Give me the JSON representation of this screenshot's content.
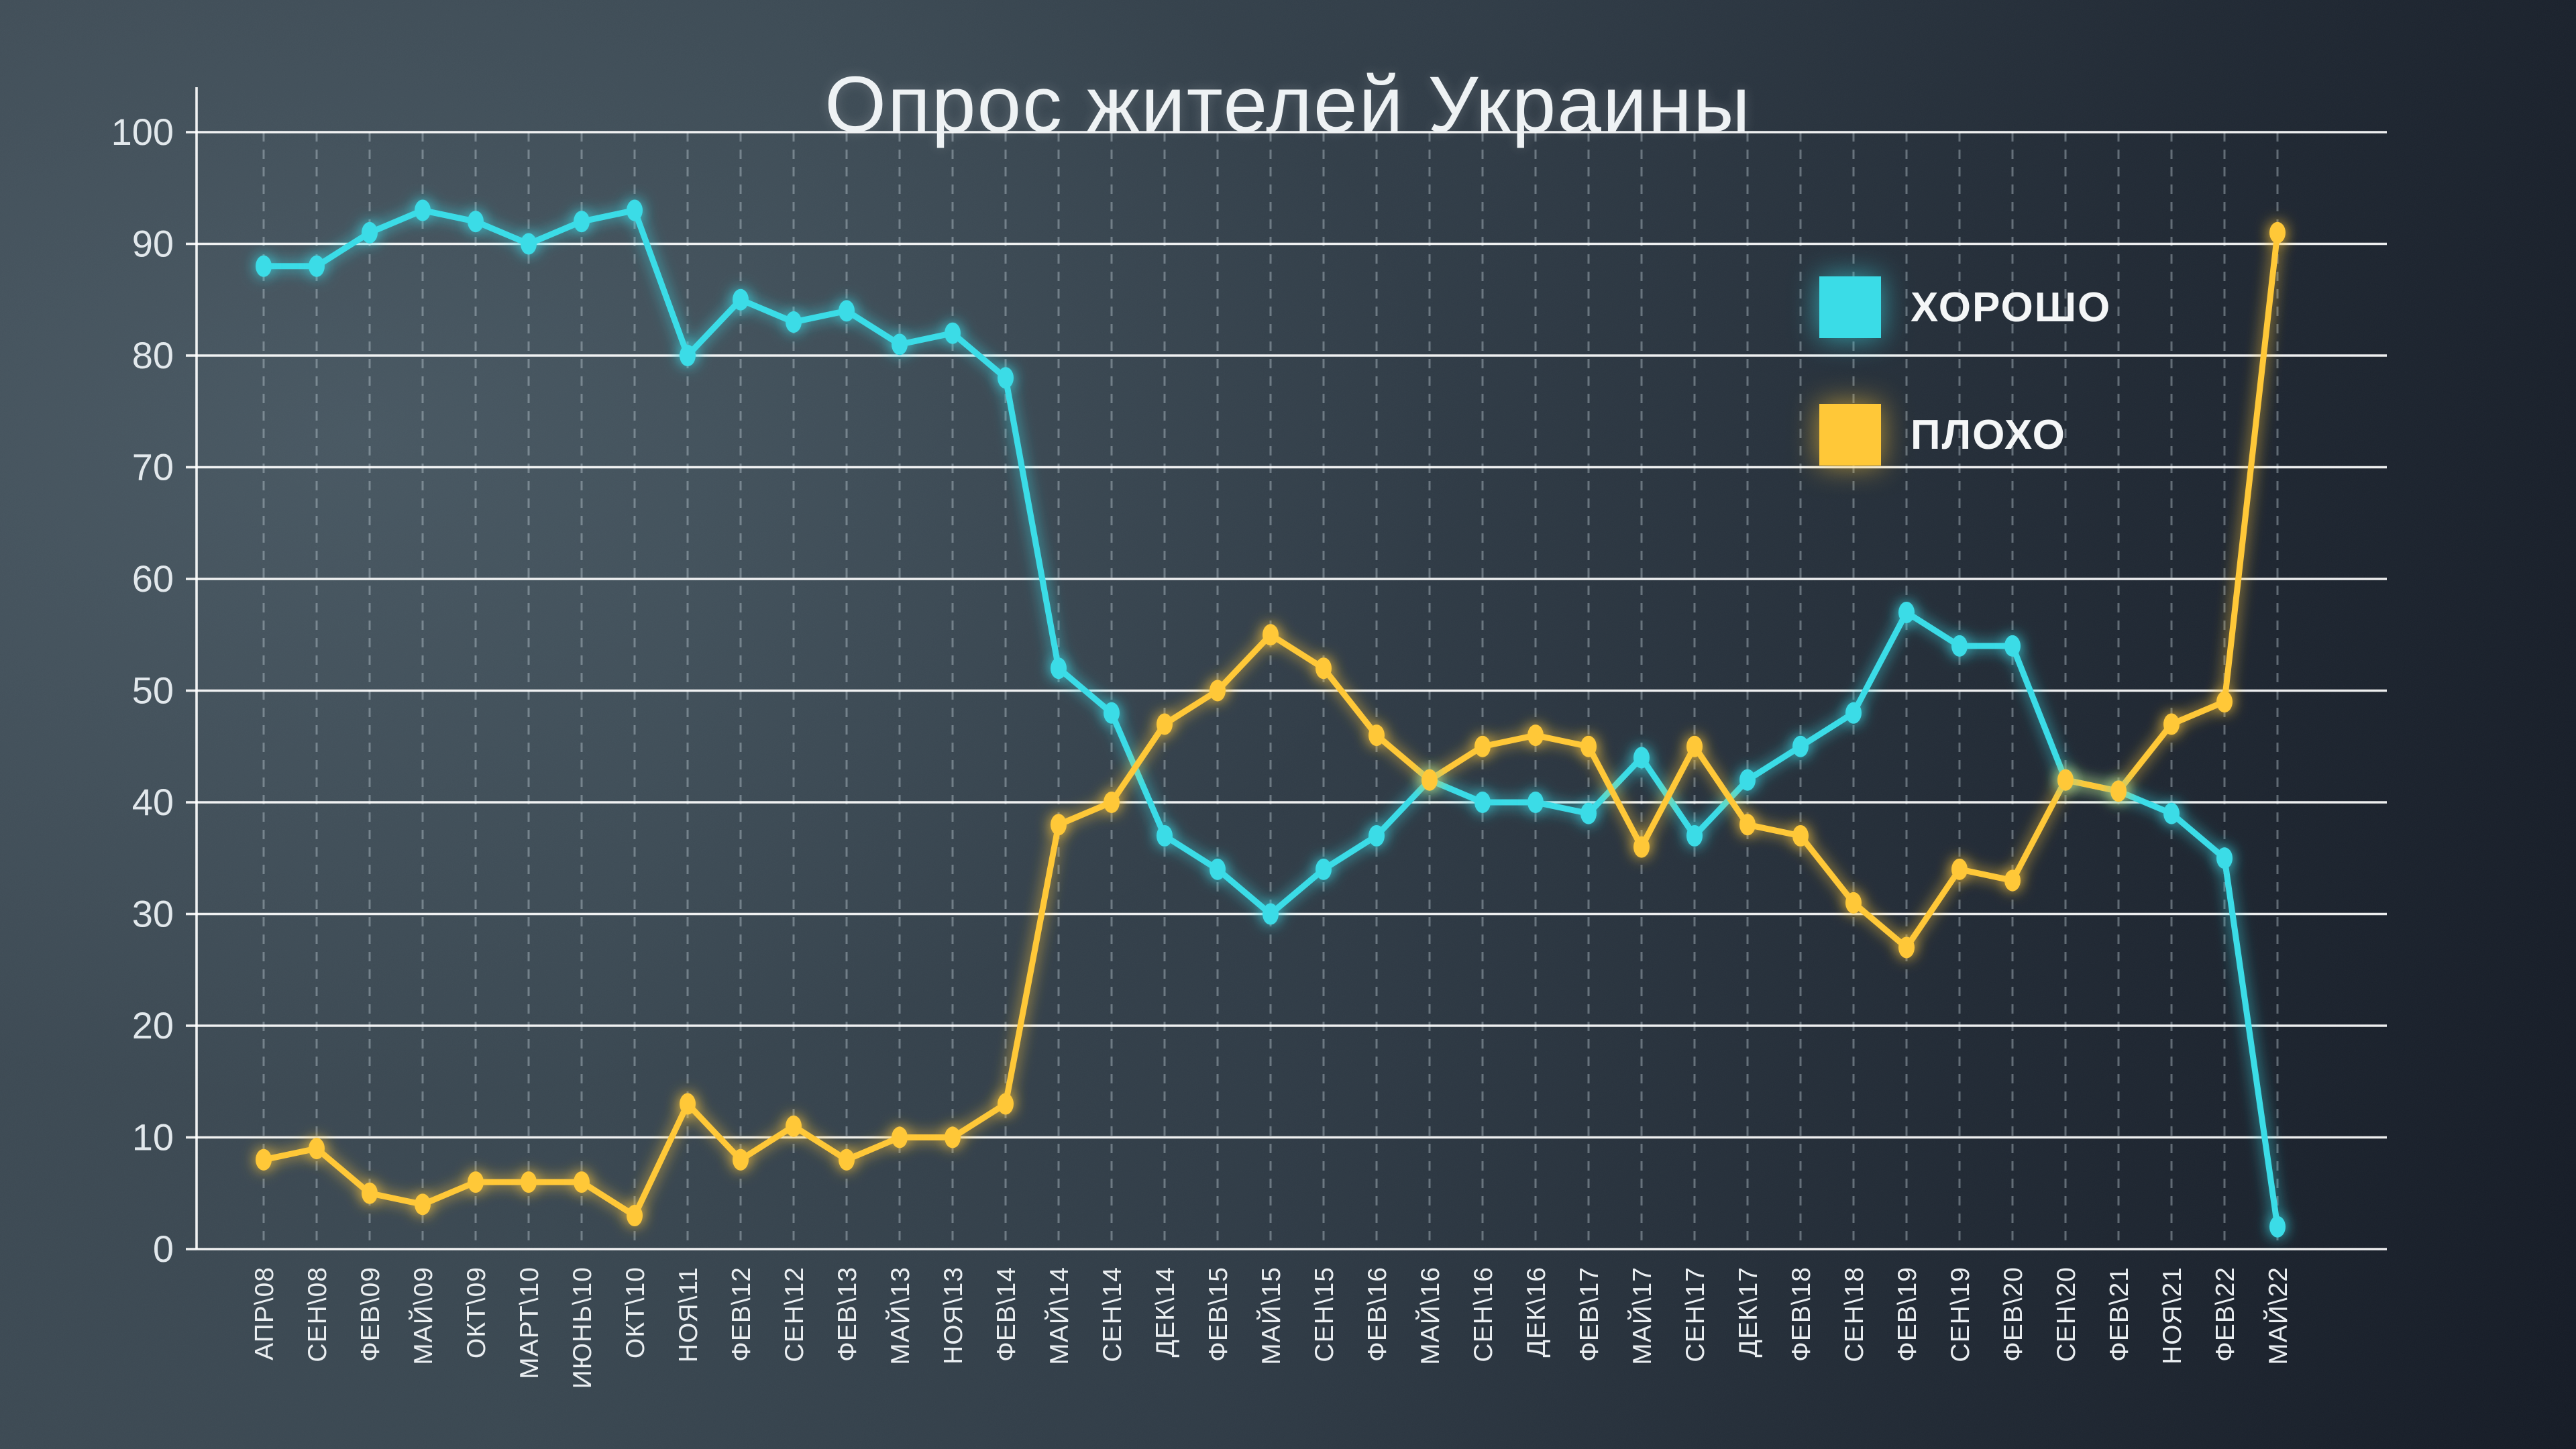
{
  "title": "Опрос жителей Украины",
  "legend": [
    {
      "label": "ХОРОШО",
      "color": "#3adce7"
    },
    {
      "label": "ПЛОХО",
      "color": "#ffc838"
    }
  ],
  "chart_data": {
    "type": "line",
    "title": "Опрос жителей Украины",
    "categories": [
      "АПР\\08",
      "СЕН\\08",
      "ФЕВ\\09",
      "МАЙ\\09",
      "ОКТ\\09",
      "МАРТ\\10",
      "ИЮНЬ\\10",
      "ОКТ\\10",
      "НОЯ\\11",
      "ФЕВ\\12",
      "СЕН\\12",
      "ФЕВ\\13",
      "МАЙ\\13",
      "НОЯ\\13",
      "ФЕВ\\14",
      "МАЙ\\14",
      "СЕН\\14",
      "ДЕК\\14",
      "ФЕВ\\15",
      "МАЙ\\15",
      "СЕН\\15",
      "ФЕВ\\16",
      "МАЙ\\16",
      "СЕН\\16",
      "ДЕК\\16",
      "ФЕВ\\17",
      "МАЙ\\17",
      "СЕН\\17",
      "ДЕК\\17",
      "ФЕВ\\18",
      "СЕН\\18",
      "ФЕВ\\19",
      "СЕН\\19",
      "ФЕВ\\20",
      "СЕН\\20",
      "ФЕВ\\21",
      "НОЯ\\21",
      "ФЕВ\\22",
      "МАЙ\\22"
    ],
    "series": [
      {
        "name": "ХОРОШО",
        "color": "#3adce7",
        "values": [
          88,
          88,
          91,
          93,
          92,
          90,
          92,
          93,
          80,
          85,
          83,
          84,
          81,
          82,
          78,
          52,
          48,
          37,
          34,
          30,
          34,
          37,
          42,
          40,
          40,
          39,
          44,
          37,
          42,
          45,
          48,
          57,
          54,
          54,
          42,
          41,
          39,
          35,
          2
        ]
      },
      {
        "name": "ПЛОХО",
        "color": "#ffc838",
        "values": [
          8,
          9,
          5,
          4,
          6,
          6,
          6,
          3,
          13,
          8,
          11,
          8,
          10,
          10,
          13,
          38,
          40,
          47,
          50,
          55,
          52,
          46,
          42,
          45,
          46,
          45,
          36,
          45,
          38,
          37,
          31,
          27,
          34,
          33,
          42,
          41,
          47,
          49,
          91
        ]
      }
    ],
    "ylim": [
      0,
      100
    ],
    "yticks": [
      0,
      10,
      20,
      30,
      40,
      50,
      60,
      70,
      80,
      90,
      100
    ],
    "grid": {
      "horizontal": "solid",
      "vertical": "dashed"
    },
    "legend_position": "top-right"
  }
}
